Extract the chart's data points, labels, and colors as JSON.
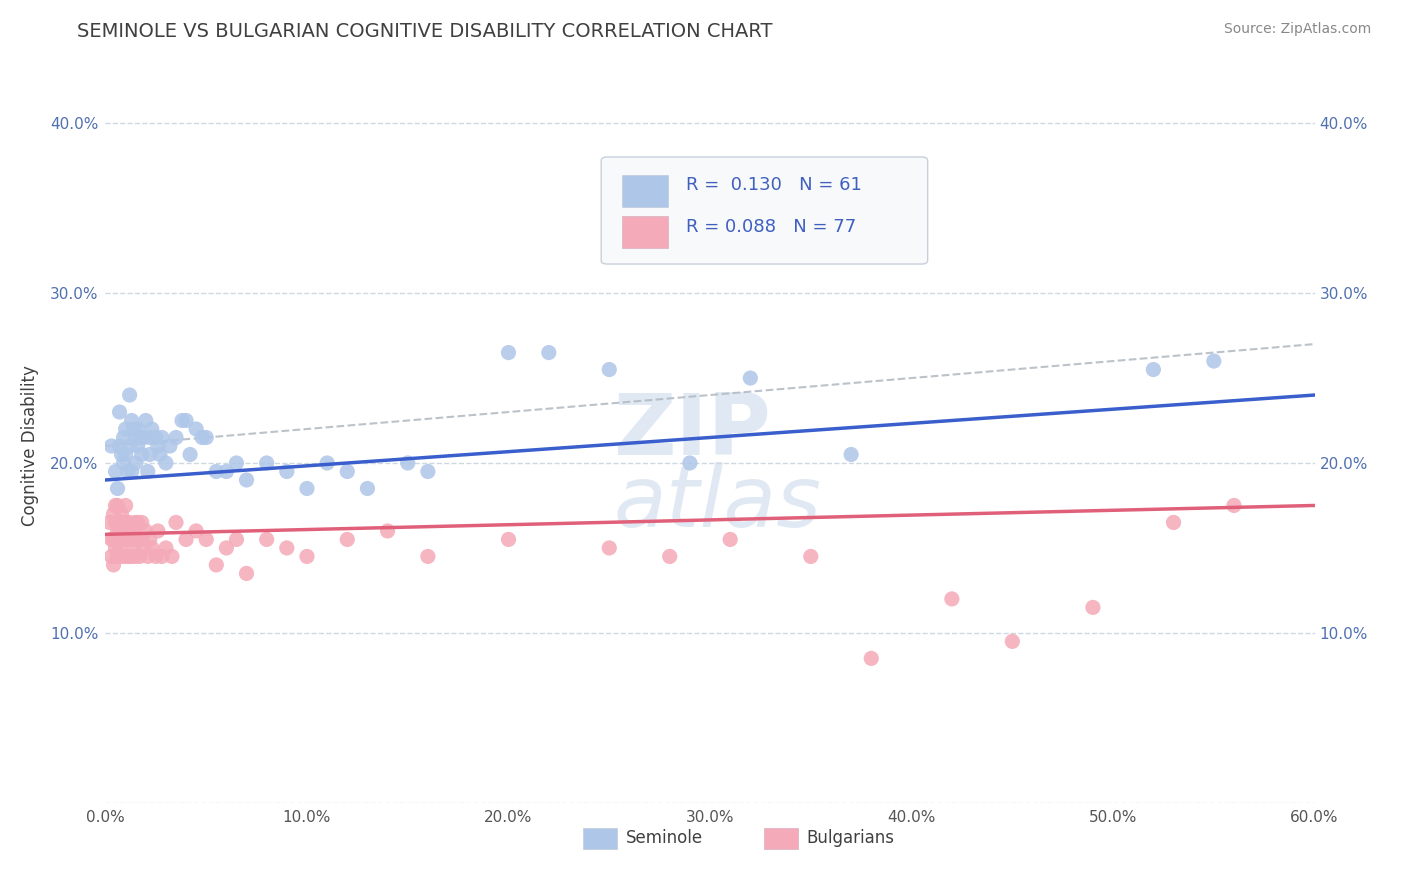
{
  "title": "SEMINOLE VS BULGARIAN COGNITIVE DISABILITY CORRELATION CHART",
  "source": "Source: ZipAtlas.com",
  "ylabel": "Cognitive Disability",
  "xlim": [
    0.0,
    0.6
  ],
  "ylim": [
    0.0,
    0.42
  ],
  "xticks": [
    0.0,
    0.1,
    0.2,
    0.3,
    0.4,
    0.5,
    0.6
  ],
  "xticklabels": [
    "0.0%",
    "10.0%",
    "20.0%",
    "30.0%",
    "40.0%",
    "50.0%",
    "60.0%"
  ],
  "yticks": [
    0.0,
    0.1,
    0.2,
    0.3,
    0.4
  ],
  "yticklabels_left": [
    "",
    "10.0%",
    "20.0%",
    "30.0%",
    "40.0%"
  ],
  "yticklabels_right": [
    "",
    "10.0%",
    "20.0%",
    "30.0%",
    "40.0%"
  ],
  "seminole_R": "0.130",
  "seminole_N": "61",
  "bulgarian_R": "0.088",
  "bulgarian_N": "77",
  "seminole_color": "#aec6e8",
  "bulgarian_color": "#f4aab8",
  "seminole_line_color": "#3a5fcd",
  "bulgarian_line_color": "#e0607a",
  "dash_line_color": "#b0b8c0",
  "background_color": "#ffffff",
  "grid_color": "#c8d4e0",
  "title_color": "#404040",
  "tick_color_y": "#5070b0",
  "legend_label_seminole": "Seminole",
  "legend_label_bulgarian": "Bulgarians",
  "seminole_x": [
    0.003,
    0.005,
    0.006,
    0.007,
    0.007,
    0.008,
    0.009,
    0.009,
    0.01,
    0.01,
    0.011,
    0.012,
    0.012,
    0.013,
    0.013,
    0.014,
    0.015,
    0.015,
    0.016,
    0.016,
    0.017,
    0.018,
    0.019,
    0.02,
    0.021,
    0.022,
    0.022,
    0.023,
    0.025,
    0.026,
    0.027,
    0.028,
    0.03,
    0.032,
    0.035,
    0.038,
    0.04,
    0.042,
    0.045,
    0.048,
    0.05,
    0.055,
    0.06,
    0.065,
    0.07,
    0.08,
    0.09,
    0.1,
    0.11,
    0.12,
    0.13,
    0.15,
    0.16,
    0.2,
    0.22,
    0.25,
    0.29,
    0.32,
    0.37,
    0.52,
    0.55
  ],
  "seminole_y": [
    0.21,
    0.195,
    0.185,
    0.23,
    0.21,
    0.205,
    0.215,
    0.2,
    0.22,
    0.205,
    0.195,
    0.24,
    0.21,
    0.225,
    0.195,
    0.22,
    0.215,
    0.2,
    0.22,
    0.21,
    0.215,
    0.205,
    0.215,
    0.225,
    0.195,
    0.215,
    0.205,
    0.22,
    0.215,
    0.21,
    0.205,
    0.215,
    0.2,
    0.21,
    0.215,
    0.225,
    0.225,
    0.205,
    0.22,
    0.215,
    0.215,
    0.195,
    0.195,
    0.2,
    0.19,
    0.2,
    0.195,
    0.185,
    0.2,
    0.195,
    0.185,
    0.2,
    0.195,
    0.265,
    0.265,
    0.255,
    0.2,
    0.25,
    0.205,
    0.255,
    0.26
  ],
  "bulgarian_x": [
    0.002,
    0.003,
    0.003,
    0.004,
    0.004,
    0.004,
    0.005,
    0.005,
    0.005,
    0.005,
    0.006,
    0.006,
    0.006,
    0.007,
    0.007,
    0.007,
    0.007,
    0.008,
    0.008,
    0.008,
    0.009,
    0.009,
    0.009,
    0.01,
    0.01,
    0.01,
    0.011,
    0.011,
    0.012,
    0.012,
    0.012,
    0.013,
    0.013,
    0.014,
    0.014,
    0.015,
    0.015,
    0.016,
    0.016,
    0.017,
    0.018,
    0.018,
    0.019,
    0.02,
    0.021,
    0.022,
    0.023,
    0.025,
    0.026,
    0.028,
    0.03,
    0.033,
    0.035,
    0.04,
    0.045,
    0.05,
    0.055,
    0.06,
    0.065,
    0.07,
    0.08,
    0.09,
    0.1,
    0.12,
    0.14,
    0.16,
    0.2,
    0.25,
    0.28,
    0.31,
    0.35,
    0.38,
    0.42,
    0.45,
    0.49,
    0.53,
    0.56
  ],
  "bulgarian_y": [
    0.165,
    0.155,
    0.145,
    0.17,
    0.155,
    0.14,
    0.175,
    0.155,
    0.165,
    0.15,
    0.16,
    0.145,
    0.175,
    0.16,
    0.15,
    0.145,
    0.165,
    0.17,
    0.155,
    0.165,
    0.16,
    0.145,
    0.155,
    0.175,
    0.155,
    0.165,
    0.155,
    0.145,
    0.16,
    0.145,
    0.165,
    0.155,
    0.145,
    0.16,
    0.15,
    0.165,
    0.145,
    0.155,
    0.165,
    0.145,
    0.155,
    0.165,
    0.15,
    0.16,
    0.145,
    0.155,
    0.15,
    0.145,
    0.16,
    0.145,
    0.15,
    0.145,
    0.165,
    0.155,
    0.16,
    0.155,
    0.14,
    0.15,
    0.155,
    0.135,
    0.155,
    0.15,
    0.145,
    0.155,
    0.16,
    0.145,
    0.155,
    0.15,
    0.145,
    0.155,
    0.145,
    0.085,
    0.12,
    0.095,
    0.115,
    0.165,
    0.175
  ],
  "seminole_line": [
    0.19,
    0.24
  ],
  "bulgarian_line": [
    0.158,
    0.175
  ],
  "dash_line": [
    0.21,
    0.27
  ],
  "watermark_text": "ZIPatlas",
  "watermark_color": "#d0dcea"
}
